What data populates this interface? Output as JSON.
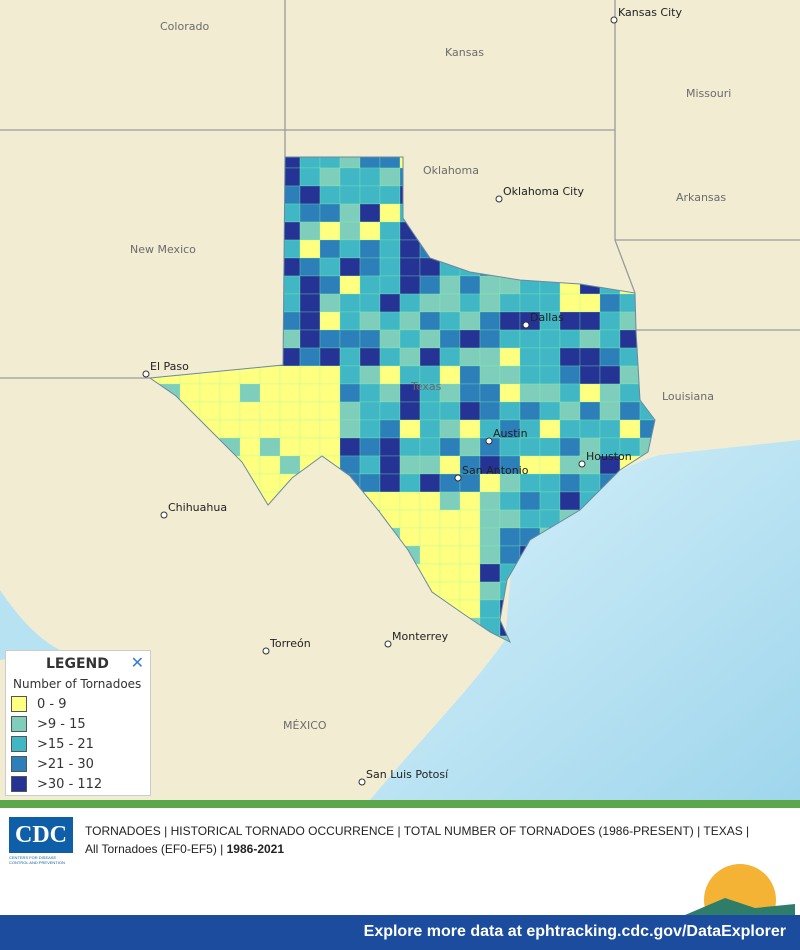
{
  "map": {
    "labels": {
      "kansas_city": "Kansas City",
      "colorado": "Colorado",
      "kansas": "Kansas",
      "missouri": "Missouri",
      "oklahoma": "Oklahoma",
      "oklahoma_city": "Oklahoma City",
      "arkansas": "Arkansas",
      "new_mexico": "New Mexico",
      "el_paso": "El Paso",
      "dallas": "Dallas",
      "texas": "Texas",
      "louisiana": "Louisiana",
      "austin": "Austin",
      "houston": "Houston",
      "san_antonio": "San Antonio",
      "chihuahua": "Chihuahua",
      "torreon": "Torreón",
      "monterrey": "Monterrey",
      "mexico": "MÉXICO",
      "san_luis_potosi": "San Luis Potosí"
    },
    "legend": {
      "title": "LEGEND",
      "close": "✕",
      "subtitle": "Number of Tornadoes",
      "classes": [
        {
          "label": "0 - 9",
          "color": "#ffff80"
        },
        {
          "label": ">9 - 15",
          "color": "#7fcdbb"
        },
        {
          "label": ">15 - 21",
          "color": "#41b6c4"
        },
        {
          "label": ">21 - 30",
          "color": "#2c7fb8"
        },
        {
          "label": ">30 - 112",
          "color": "#253494"
        }
      ]
    }
  },
  "footer": {
    "logo": "CDC",
    "logo_sub": "CENTERS FOR DISEASE CONTROL AND PREVENTION",
    "line1": "TORNADOES | HISTORICAL TORNADO OCCURRENCE | TOTAL NUMBER OF TORNADOES (1986-PRESENT) | TEXAS |",
    "line2": "All Tornadoes (EF0-EF5) |",
    "years": "1986-2021",
    "banner": "Explore more data at ephtracking.cdc.gov/DataExplorer"
  }
}
